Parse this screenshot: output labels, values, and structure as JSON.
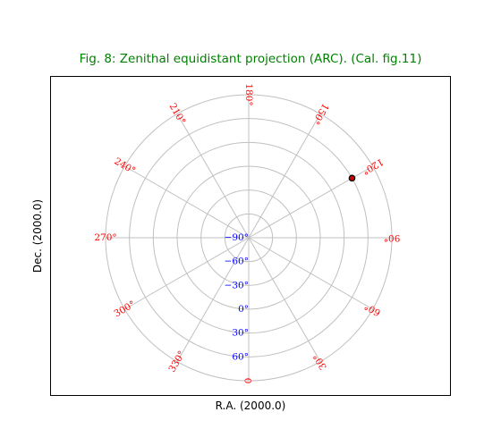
{
  "figure": {
    "title": "Fig. 8: Zenithal equidistant projection (ARC). (Cal. fig.11)",
    "xlabel": "R.A. (2000.0)",
    "ylabel": "Dec. (2000.0)"
  },
  "colors": {
    "title": "#008000",
    "grid": "#c0c0c0",
    "ra_labels": "#ff0000",
    "dec_labels": "#0000ff",
    "frame": "#000000",
    "marker_fill": "#cc0000",
    "marker_edge": "#000000"
  },
  "grid": {
    "meridians_ra": [
      0,
      30,
      60,
      90,
      120,
      150,
      180,
      210,
      240,
      270,
      300,
      330
    ],
    "parallels_dec": [
      90,
      60,
      30,
      0,
      -30,
      -60,
      -90
    ]
  },
  "ra_labels": [
    {
      "ra": 0,
      "text": "0"
    },
    {
      "ra": 30,
      "text": "30°"
    },
    {
      "ra": 60,
      "text": "60°"
    },
    {
      "ra": 90,
      "text": "90°"
    },
    {
      "ra": 120,
      "text": "120°"
    },
    {
      "ra": 150,
      "text": "150°"
    },
    {
      "ra": 180,
      "text": "180°"
    },
    {
      "ra": 210,
      "text": "210°"
    },
    {
      "ra": 240,
      "text": "240°"
    },
    {
      "ra": 270,
      "text": "270°"
    },
    {
      "ra": 300,
      "text": "300°"
    },
    {
      "ra": 330,
      "text": "330°"
    }
  ],
  "dec_labels": [
    {
      "dec": 60,
      "text": "60°"
    },
    {
      "dec": 30,
      "text": "30°"
    },
    {
      "dec": 0,
      "text": "0°"
    },
    {
      "dec": -30,
      "text": "−30°"
    },
    {
      "dec": -60,
      "text": "−60°"
    },
    {
      "dec": -90,
      "text": "−90°"
    }
  ],
  "marker": {
    "ra": 120,
    "dec": 60
  }
}
